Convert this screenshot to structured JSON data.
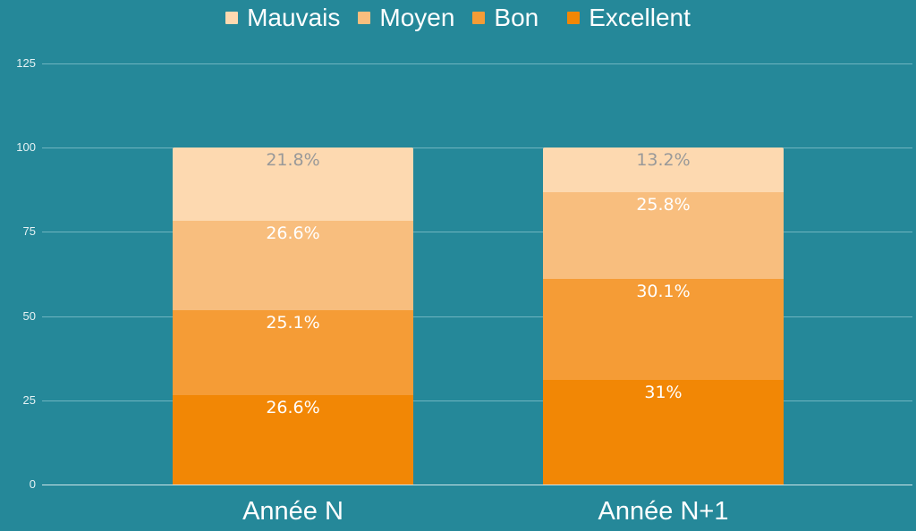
{
  "chart_data": {
    "type": "bar",
    "stacked": true,
    "title": "",
    "xlabel": "",
    "ylabel": "",
    "ylim": [
      0,
      125
    ],
    "yticks": [
      "0",
      "25",
      "50",
      "75",
      "100",
      "125"
    ],
    "grid": true,
    "legend_position": "top",
    "categories": [
      "Année N",
      "Année N+1"
    ],
    "series": [
      {
        "name": "Excellent",
        "color": "#f28705",
        "values": [
          26.6,
          31
        ],
        "labels": [
          "26.6%",
          "31%"
        ],
        "label_color": "#ffffff"
      },
      {
        "name": "Bon",
        "color": "#f59c36",
        "values": [
          25.1,
          30.1
        ],
        "labels": [
          "25.1%",
          "30.1%"
        ],
        "label_color": "#ffffff"
      },
      {
        "name": "Moyen",
        "color": "#f8be7e",
        "values": [
          26.6,
          25.8
        ],
        "labels": [
          "26.6%",
          "25.8%"
        ],
        "label_color": "#ffffff"
      },
      {
        "name": "Mauvais",
        "color": "#fdd9b0",
        "values": [
          21.8,
          13.2
        ],
        "labels": [
          "21.8%",
          "13.2%"
        ],
        "label_color": "#999999"
      }
    ]
  },
  "legend": [
    {
      "label": "Mauvais",
      "color": "#fdd9b0"
    },
    {
      "label": "Moyen",
      "color": "#f8be7e"
    },
    {
      "label": "Bon",
      "color": "#f59c36"
    },
    {
      "label": "Excellent",
      "color": "#f28705"
    }
  ],
  "background": "#258899"
}
